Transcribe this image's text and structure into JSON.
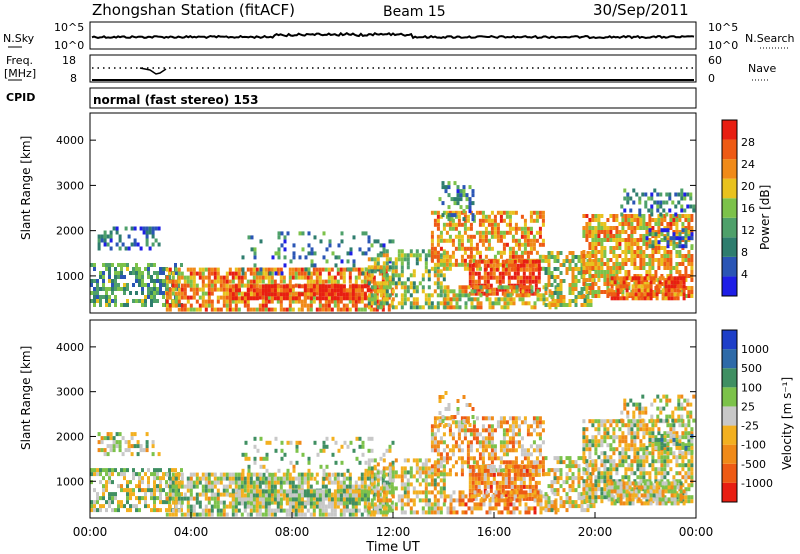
{
  "header": {
    "title": "Zhongshan Station (fitACF)",
    "beam": "Beam 15",
    "date": "30/Sep/2011"
  },
  "top_panels": {
    "nsky_label": "N.Sky",
    "nsky_ticks": [
      "10^5",
      "10^0"
    ],
    "nsearch_label": "N.Search",
    "freq_label": "Freq.",
    "freq_unit": "[MHz]",
    "freq_ticks": [
      "18",
      "8"
    ],
    "nave_label": "Nave",
    "nave_ticks": [
      "60",
      "0"
    ],
    "cpid_label": "CPID",
    "cpid_text": "normal (fast stereo) 153"
  },
  "colors": {
    "power": [
      "#1e1ee6",
      "#2a55b5",
      "#2e7d6e",
      "#4ea06a",
      "#7cc24a",
      "#e8c21e",
      "#f08a18",
      "#ee5a14",
      "#e81e12"
    ],
    "velocity": [
      "#e81e12",
      "#ee5a14",
      "#f08a18",
      "#f3b020",
      "#c8c8c8",
      "#7cc24a",
      "#3f8f62",
      "#2e6aa8",
      "#1e3fc8"
    ]
  },
  "chart_data": [
    {
      "type": "heatmap",
      "name": "power",
      "ylabel": "Slant Range [km]",
      "yticks": [
        1000,
        2000,
        3000,
        4000
      ],
      "ylim": [
        180,
        4600
      ],
      "xlim_hours": [
        0,
        24
      ],
      "colorbar": {
        "label": "Power [dB]",
        "ticks": [
          "28",
          "24",
          "20",
          "16",
          "12",
          "8",
          "4"
        ],
        "range": [
          0,
          30
        ]
      }
    },
    {
      "type": "heatmap",
      "name": "velocity",
      "ylabel": "Slant Range [km]",
      "xlabel": "Time UT",
      "yticks": [
        1000,
        2000,
        3000,
        4000
      ],
      "ylim": [
        180,
        4600
      ],
      "xlim_hours": [
        0,
        24
      ],
      "xtick_labels": [
        "00:00",
        "04:00",
        "08:00",
        "12:00",
        "16:00",
        "20:00",
        "00:00"
      ],
      "colorbar": {
        "label": "Velocity [m s⁻¹]",
        "ticks": [
          "1000",
          "500",
          "100",
          "25",
          "-25",
          "-100",
          "-500",
          "-1000"
        ]
      }
    }
  ]
}
